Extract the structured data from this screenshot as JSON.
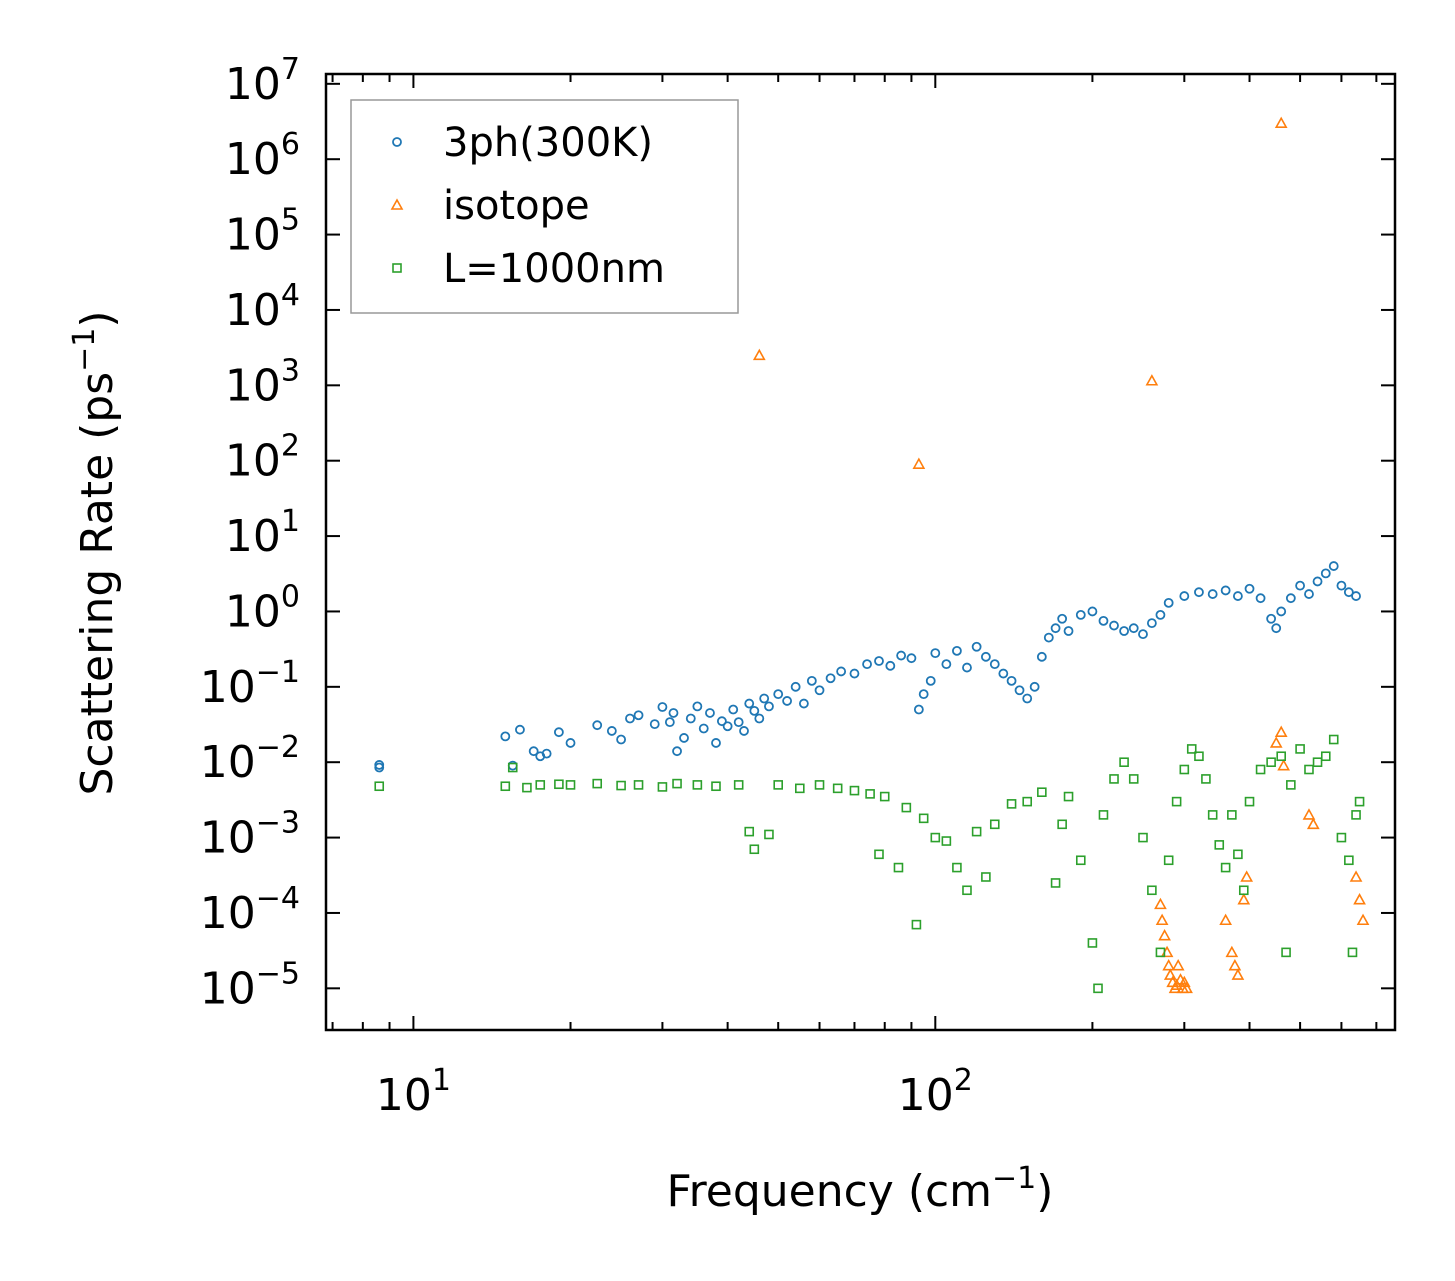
{
  "chart_data": {
    "type": "scatter",
    "title": "",
    "xlabel": "Frequency (cm",
    "xlabel_sup": "−1",
    "xlabel_tail": ")",
    "ylabel": "Scattering Rate (ps",
    "ylabel_sup": "−1",
    "ylabel_tail": ")",
    "xscale": "log",
    "yscale": "log",
    "xlim": [
      6.8,
      760
    ],
    "ylim": [
      2.8e-06,
      13500000.0
    ],
    "x_ticks": [
      {
        "value": 10,
        "base": "10",
        "exp": "1"
      },
      {
        "value": 100,
        "base": "10",
        "exp": "2"
      }
    ],
    "y_ticks": [
      {
        "value": 10000000.0,
        "base": "10",
        "exp": "7"
      },
      {
        "value": 1000000.0,
        "base": "10",
        "exp": "6"
      },
      {
        "value": 100000.0,
        "base": "10",
        "exp": "5"
      },
      {
        "value": 10000.0,
        "base": "10",
        "exp": "4"
      },
      {
        "value": 1000.0,
        "base": "10",
        "exp": "3"
      },
      {
        "value": 100.0,
        "base": "10",
        "exp": "2"
      },
      {
        "value": 10.0,
        "base": "10",
        "exp": "1"
      },
      {
        "value": 1.0,
        "base": "10",
        "exp": "0"
      },
      {
        "value": 0.1,
        "base": "10",
        "exp": "−1"
      },
      {
        "value": 0.01,
        "base": "10",
        "exp": "−2"
      },
      {
        "value": 0.001,
        "base": "10",
        "exp": "−3"
      },
      {
        "value": 0.0001,
        "base": "10",
        "exp": "−4"
      },
      {
        "value": 1e-05,
        "base": "10",
        "exp": "−5"
      }
    ],
    "legend_position": "top-left",
    "series": [
      {
        "name": "3ph(300K)",
        "marker": "circle",
        "color": "#1f77b4",
        "points": [
          [
            8.6,
            0.0085
          ],
          [
            8.6,
            0.0092
          ],
          [
            15,
            0.022
          ],
          [
            15.5,
            0.009
          ],
          [
            16,
            0.027
          ],
          [
            17,
            0.014
          ],
          [
            17.5,
            0.012
          ],
          [
            18,
            0.013
          ],
          [
            19,
            0.025
          ],
          [
            20,
            0.018
          ],
          [
            22.5,
            0.031
          ],
          [
            24,
            0.026
          ],
          [
            25,
            0.02
          ],
          [
            26,
            0.038
          ],
          [
            27,
            0.042
          ],
          [
            29,
            0.032
          ],
          [
            30,
            0.054
          ],
          [
            31,
            0.034
          ],
          [
            31.5,
            0.045
          ],
          [
            32,
            0.014
          ],
          [
            33,
            0.021
          ],
          [
            34,
            0.038
          ],
          [
            35,
            0.055
          ],
          [
            36,
            0.028
          ],
          [
            37,
            0.045
          ],
          [
            38,
            0.018
          ],
          [
            39,
            0.035
          ],
          [
            40,
            0.03
          ],
          [
            41,
            0.05
          ],
          [
            42,
            0.034
          ],
          [
            43,
            0.026
          ],
          [
            44,
            0.06
          ],
          [
            45,
            0.048
          ],
          [
            46,
            0.038
          ],
          [
            47,
            0.07
          ],
          [
            48,
            0.055
          ],
          [
            50,
            0.08
          ],
          [
            52,
            0.065
          ],
          [
            54,
            0.1
          ],
          [
            56,
            0.06
          ],
          [
            58,
            0.12
          ],
          [
            60,
            0.09
          ],
          [
            63,
            0.13
          ],
          [
            66,
            0.16
          ],
          [
            70,
            0.15
          ],
          [
            74,
            0.2
          ],
          [
            78,
            0.22
          ],
          [
            82,
            0.19
          ],
          [
            86,
            0.26
          ],
          [
            90,
            0.24
          ],
          [
            93,
            0.05
          ],
          [
            95,
            0.08
          ],
          [
            98,
            0.12
          ],
          [
            100,
            0.28
          ],
          [
            105,
            0.2
          ],
          [
            110,
            0.3
          ],
          [
            115,
            0.18
          ],
          [
            120,
            0.34
          ],
          [
            125,
            0.25
          ],
          [
            130,
            0.2
          ],
          [
            135,
            0.15
          ],
          [
            140,
            0.12
          ],
          [
            145,
            0.09
          ],
          [
            150,
            0.07
          ],
          [
            155,
            0.1
          ],
          [
            160,
            0.25
          ],
          [
            165,
            0.45
          ],
          [
            170,
            0.6
          ],
          [
            175,
            0.8
          ],
          [
            180,
            0.55
          ],
          [
            190,
            0.9
          ],
          [
            200,
            1.0
          ],
          [
            210,
            0.75
          ],
          [
            220,
            0.65
          ],
          [
            230,
            0.55
          ],
          [
            240,
            0.6
          ],
          [
            250,
            0.5
          ],
          [
            260,
            0.7
          ],
          [
            270,
            0.9
          ],
          [
            280,
            1.3
          ],
          [
            300,
            1.6
          ],
          [
            320,
            1.8
          ],
          [
            340,
            1.7
          ],
          [
            360,
            1.9
          ],
          [
            380,
            1.6
          ],
          [
            400,
            2.0
          ],
          [
            420,
            1.5
          ],
          [
            440,
            0.8
          ],
          [
            450,
            0.6
          ],
          [
            460,
            1.0
          ],
          [
            480,
            1.5
          ],
          [
            500,
            2.2
          ],
          [
            520,
            1.7
          ],
          [
            540,
            2.5
          ],
          [
            560,
            3.2
          ],
          [
            580,
            4.0
          ],
          [
            600,
            2.2
          ],
          [
            620,
            1.8
          ],
          [
            640,
            1.6
          ]
        ]
      },
      {
        "name": "isotope",
        "marker": "triangle",
        "color": "#ff7f0e",
        "points": [
          [
            46,
            2500
          ],
          [
            93,
            90
          ],
          [
            260,
            1150
          ],
          [
            460,
            3000000
          ],
          [
            270,
            0.00013
          ],
          [
            272,
            8e-05
          ],
          [
            275,
            5e-05
          ],
          [
            278,
            3e-05
          ],
          [
            280,
            2e-05
          ],
          [
            282,
            1.5e-05
          ],
          [
            285,
            1.2e-05
          ],
          [
            288,
            1e-05
          ],
          [
            290,
            1.1e-05
          ],
          [
            292,
            2e-05
          ],
          [
            295,
            1.3e-05
          ],
          [
            298,
            1e-05
          ],
          [
            300,
            1.2e-05
          ],
          [
            303,
            1e-05
          ],
          [
            360,
            8e-05
          ],
          [
            370,
            3e-05
          ],
          [
            375,
            2e-05
          ],
          [
            380,
            1.5e-05
          ],
          [
            390,
            0.00015
          ],
          [
            395,
            0.0003
          ],
          [
            450,
            0.018
          ],
          [
            460,
            0.025
          ],
          [
            465,
            0.009
          ],
          [
            520,
            0.002
          ],
          [
            530,
            0.0015
          ],
          [
            640,
            0.0003
          ],
          [
            650,
            0.00015
          ],
          [
            660,
            8e-05
          ]
        ]
      },
      {
        "name": "L=1000nm",
        "marker": "square",
        "color": "#2ca02c",
        "points": [
          [
            8.6,
            0.0048
          ],
          [
            15,
            0.0048
          ],
          [
            15.5,
            0.0085
          ],
          [
            16.5,
            0.0046
          ],
          [
            17.5,
            0.005
          ],
          [
            19,
            0.0051
          ],
          [
            20,
            0.005
          ],
          [
            22.5,
            0.0052
          ],
          [
            25,
            0.0049
          ],
          [
            27,
            0.005
          ],
          [
            30,
            0.0047
          ],
          [
            32,
            0.0052
          ],
          [
            35,
            0.005
          ],
          [
            38,
            0.0048
          ],
          [
            42,
            0.005
          ],
          [
            44,
            0.0012
          ],
          [
            45,
            0.0007
          ],
          [
            48,
            0.0011
          ],
          [
            50,
            0.005
          ],
          [
            55,
            0.0045
          ],
          [
            60,
            0.005
          ],
          [
            65,
            0.0045
          ],
          [
            70,
            0.0042
          ],
          [
            75,
            0.0038
          ],
          [
            78,
            0.0006
          ],
          [
            80,
            0.0035
          ],
          [
            85,
            0.0004
          ],
          [
            88,
            0.0025
          ],
          [
            92,
            7e-05
          ],
          [
            95,
            0.0018
          ],
          [
            100,
            0.001
          ],
          [
            105,
            0.0009
          ],
          [
            110,
            0.0004
          ],
          [
            115,
            0.0002
          ],
          [
            120,
            0.0012
          ],
          [
            125,
            0.0003
          ],
          [
            130,
            0.0015
          ],
          [
            140,
            0.0028
          ],
          [
            150,
            0.003
          ],
          [
            160,
            0.004
          ],
          [
            170,
            0.00025
          ],
          [
            175,
            0.0015
          ],
          [
            180,
            0.0035
          ],
          [
            190,
            0.0005
          ],
          [
            200,
            4e-05
          ],
          [
            205,
            1e-05
          ],
          [
            210,
            0.002
          ],
          [
            220,
            0.006
          ],
          [
            230,
            0.01
          ],
          [
            240,
            0.006
          ],
          [
            250,
            0.001
          ],
          [
            260,
            0.0002
          ],
          [
            270,
            3e-05
          ],
          [
            280,
            0.0005
          ],
          [
            290,
            0.003
          ],
          [
            300,
            0.008
          ],
          [
            310,
            0.015
          ],
          [
            320,
            0.012
          ],
          [
            330,
            0.006
          ],
          [
            340,
            0.002
          ],
          [
            350,
            0.0008
          ],
          [
            360,
            0.0004
          ],
          [
            370,
            0.002
          ],
          [
            380,
            0.0006
          ],
          [
            390,
            0.0002
          ],
          [
            400,
            0.003
          ],
          [
            420,
            0.008
          ],
          [
            440,
            0.01
          ],
          [
            460,
            0.012
          ],
          [
            470,
            3e-05
          ],
          [
            480,
            0.005
          ],
          [
            500,
            0.015
          ],
          [
            520,
            0.008
          ],
          [
            540,
            0.01
          ],
          [
            560,
            0.012
          ],
          [
            580,
            0.02
          ],
          [
            600,
            0.001
          ],
          [
            620,
            0.0005
          ],
          [
            630,
            3e-05
          ],
          [
            640,
            0.002
          ],
          [
            650,
            0.003
          ]
        ]
      }
    ]
  }
}
